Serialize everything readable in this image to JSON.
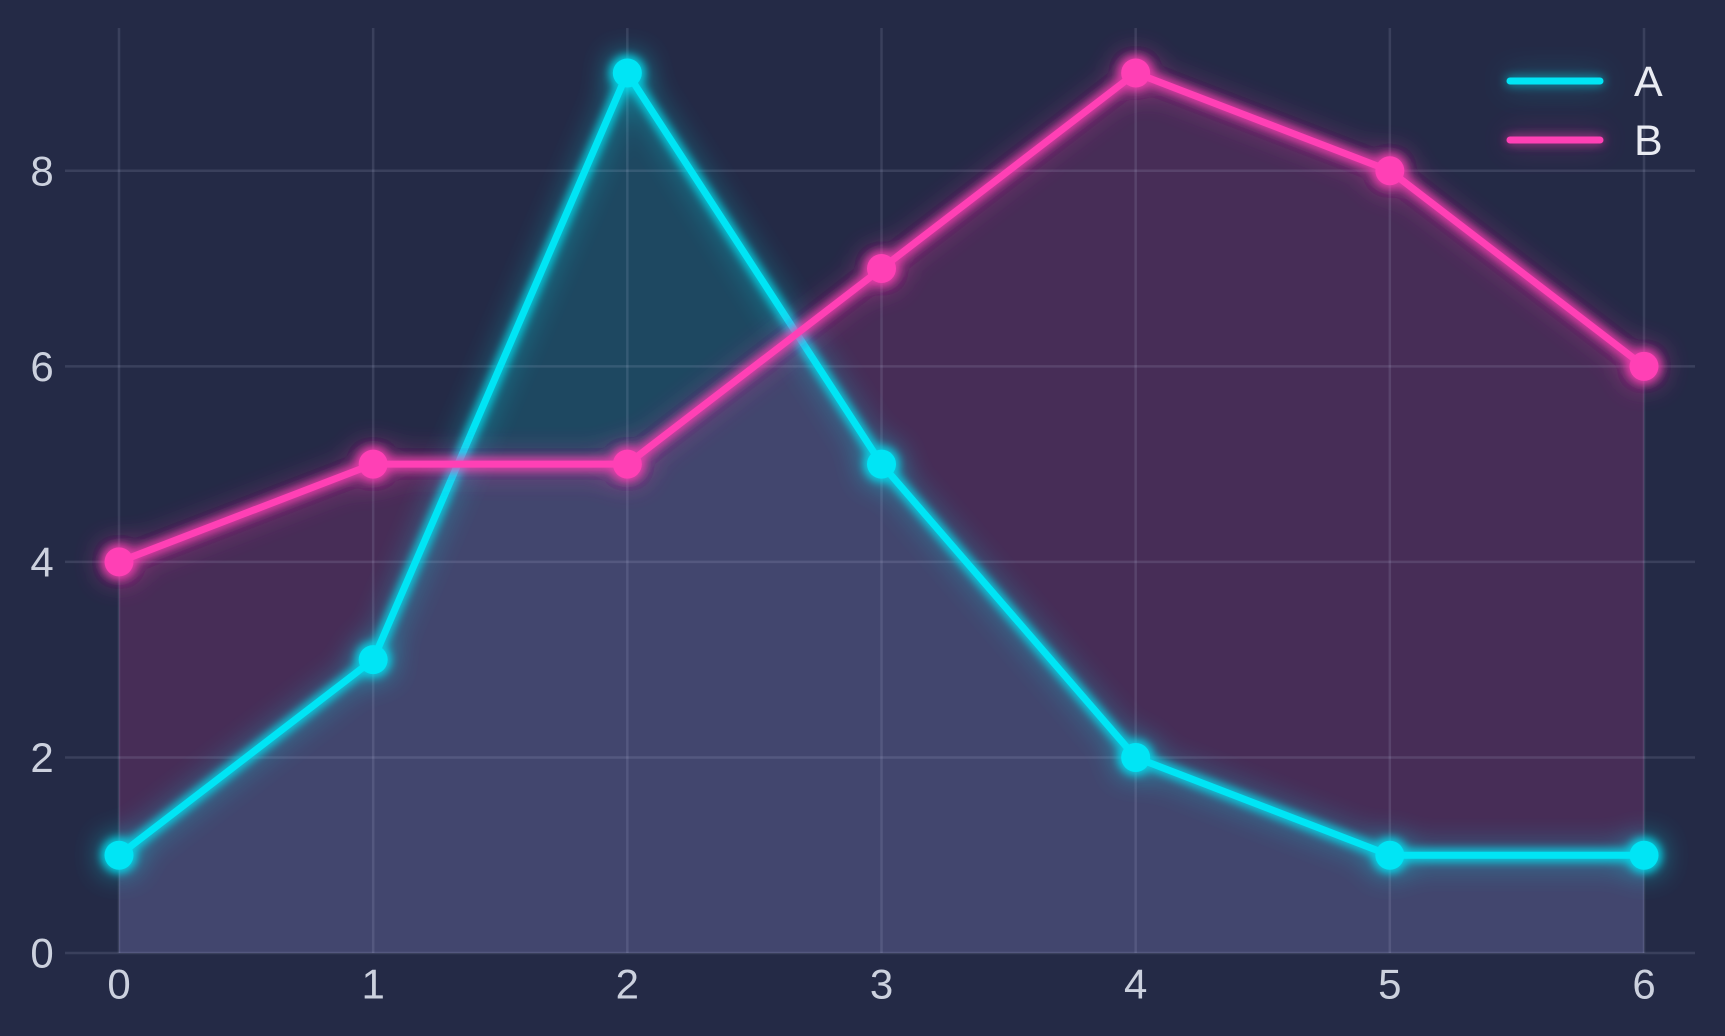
{
  "chart_data": {
    "type": "line",
    "x": [
      0,
      1,
      2,
      3,
      4,
      5,
      6
    ],
    "series": [
      {
        "name": "A",
        "color": "#00e5f5",
        "values": [
          1,
          3,
          9,
          5,
          2,
          1,
          1
        ]
      },
      {
        "name": "B",
        "color": "#ff40b5",
        "values": [
          4,
          5,
          5,
          7,
          9,
          8,
          6
        ]
      }
    ],
    "title": "",
    "xlabel": "",
    "ylabel": "",
    "xlim": [
      0,
      6
    ],
    "ylim": [
      0,
      9.46
    ],
    "x_ticks": [
      0,
      1,
      2,
      3,
      4,
      5,
      6
    ],
    "y_ticks": [
      0,
      2,
      4,
      6,
      8
    ],
    "grid": true,
    "legend_position": "top-right",
    "legend_items": [
      "A",
      "B"
    ],
    "style": {
      "background": "#242a46",
      "grid_color": "rgba(208,218,248,0.13)",
      "tick_color": "#ccd1de",
      "legend_text_color": "#e9ebf2",
      "fill_opacity": 0.16,
      "line_width": 7,
      "marker_radius": 14.5
    }
  }
}
